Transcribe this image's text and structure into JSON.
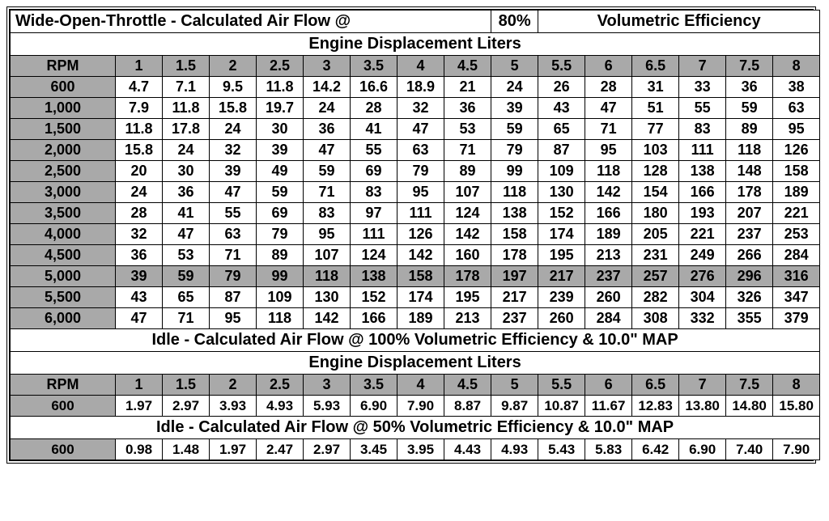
{
  "header": {
    "left": "Wide-Open-Throttle - Calculated Air Flow @",
    "pct": "80%",
    "right": "Volumetric Efficiency",
    "sub": "Engine Displacement Liters"
  },
  "cols": [
    "RPM",
    "1",
    "1.5",
    "2",
    "2.5",
    "3",
    "3.5",
    "4",
    "4.5",
    "5",
    "5.5",
    "6",
    "6.5",
    "7",
    "7.5",
    "8"
  ],
  "wot": [
    [
      "600",
      "4.7",
      "7.1",
      "9.5",
      "11.8",
      "14.2",
      "16.6",
      "18.9",
      "21",
      "24",
      "26",
      "28",
      "31",
      "33",
      "36",
      "38"
    ],
    [
      "1,000",
      "7.9",
      "11.8",
      "15.8",
      "19.7",
      "24",
      "28",
      "32",
      "36",
      "39",
      "43",
      "47",
      "51",
      "55",
      "59",
      "63"
    ],
    [
      "1,500",
      "11.8",
      "17.8",
      "24",
      "30",
      "36",
      "41",
      "47",
      "53",
      "59",
      "65",
      "71",
      "77",
      "83",
      "89",
      "95"
    ],
    [
      "2,000",
      "15.8",
      "24",
      "32",
      "39",
      "47",
      "55",
      "63",
      "71",
      "79",
      "87",
      "95",
      "103",
      "111",
      "118",
      "126"
    ],
    [
      "2,500",
      "20",
      "30",
      "39",
      "49",
      "59",
      "69",
      "79",
      "89",
      "99",
      "109",
      "118",
      "128",
      "138",
      "148",
      "158"
    ],
    [
      "3,000",
      "24",
      "36",
      "47",
      "59",
      "71",
      "83",
      "95",
      "107",
      "118",
      "130",
      "142",
      "154",
      "166",
      "178",
      "189"
    ],
    [
      "3,500",
      "28",
      "41",
      "55",
      "69",
      "83",
      "97",
      "111",
      "124",
      "138",
      "152",
      "166",
      "180",
      "193",
      "207",
      "221"
    ],
    [
      "4,000",
      "32",
      "47",
      "63",
      "79",
      "95",
      "111",
      "126",
      "142",
      "158",
      "174",
      "189",
      "205",
      "221",
      "237",
      "253"
    ],
    [
      "4,500",
      "36",
      "53",
      "71",
      "89",
      "107",
      "124",
      "142",
      "160",
      "178",
      "195",
      "213",
      "231",
      "249",
      "266",
      "284"
    ],
    [
      "5,000",
      "39",
      "59",
      "79",
      "99",
      "118",
      "138",
      "158",
      "178",
      "197",
      "217",
      "237",
      "257",
      "276",
      "296",
      "316"
    ],
    [
      "5,500",
      "43",
      "65",
      "87",
      "109",
      "130",
      "152",
      "174",
      "195",
      "217",
      "239",
      "260",
      "282",
      "304",
      "326",
      "347"
    ],
    [
      "6,000",
      "47",
      "71",
      "95",
      "118",
      "142",
      "166",
      "189",
      "213",
      "237",
      "260",
      "284",
      "308",
      "332",
      "355",
      "379"
    ]
  ],
  "wot_grey_rows": [
    9
  ],
  "idle100_title": "Idle - Calculated Air Flow @ 100% Volumetric Efficiency & 10.0\" MAP",
  "idle100_sub": "Engine Displacement Liters",
  "idle100": [
    [
      "600",
      "1.97",
      "2.97",
      "3.93",
      "4.93",
      "5.93",
      "6.90",
      "7.90",
      "8.87",
      "9.87",
      "10.87",
      "11.67",
      "12.83",
      "13.80",
      "14.80",
      "15.80"
    ]
  ],
  "idle50_title": "Idle - Calculated Air Flow @ 50% Volumetric Efficiency & 10.0\" MAP",
  "idle50": [
    [
      "600",
      "0.98",
      "1.48",
      "1.97",
      "2.47",
      "2.97",
      "3.45",
      "3.95",
      "4.43",
      "4.93",
      "5.43",
      "5.83",
      "6.42",
      "6.90",
      "7.40",
      "7.90"
    ]
  ]
}
